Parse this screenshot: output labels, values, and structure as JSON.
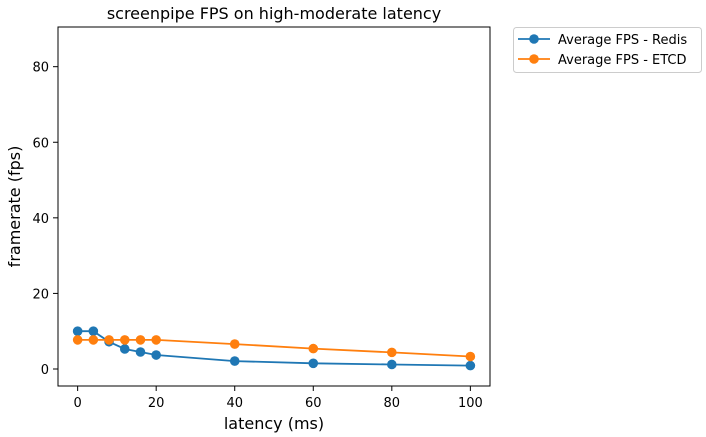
{
  "chart_data": {
    "type": "line",
    "title": "screenpipe FPS on high-moderate latency",
    "xlabel": "latency (ms)",
    "ylabel": "framerate (fps)",
    "xlim": [
      -5,
      105
    ],
    "ylim": [
      -4.5,
      90.5
    ],
    "xticks": [
      0,
      20,
      40,
      60,
      80,
      100
    ],
    "yticks": [
      0,
      20,
      40,
      60,
      80
    ],
    "grid": false,
    "legend_position": "outside top-right",
    "series": [
      {
        "name": "Average FPS - Redis",
        "color": "#1f77b4",
        "marker": "circle",
        "x": [
          0,
          4,
          8,
          12,
          16,
          20,
          40,
          60,
          80,
          100
        ],
        "y": [
          10.0,
          10.0,
          7.2,
          5.3,
          4.5,
          3.7,
          2.1,
          1.5,
          1.2,
          0.9
        ]
      },
      {
        "name": "Average FPS - ETCD",
        "color": "#ff7f0e",
        "marker": "circle",
        "x": [
          0,
          4,
          8,
          12,
          16,
          20,
          40,
          60,
          80,
          100
        ],
        "y": [
          7.7,
          7.7,
          7.7,
          7.7,
          7.7,
          7.7,
          6.6,
          5.4,
          4.4,
          3.3
        ]
      }
    ]
  }
}
